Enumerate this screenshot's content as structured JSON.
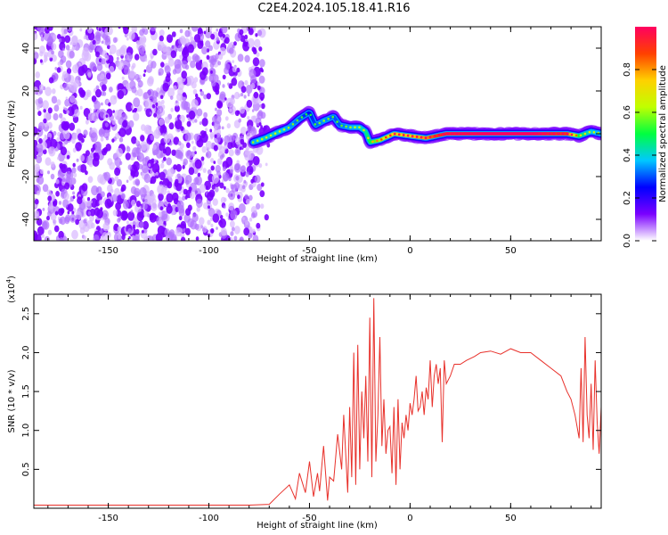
{
  "title": "C2E4.2024.105.18.41.R16",
  "chart_data": [
    {
      "type": "heatmap",
      "xlabel": "Height of straight line (km)",
      "ylabel": "Frequency (Hz)",
      "xlim": [
        -187,
        95
      ],
      "ylim": [
        -50,
        50
      ],
      "xticks": [
        -150,
        -100,
        -50,
        0,
        50
      ],
      "yticks": [
        -40,
        -20,
        0,
        20,
        40
      ],
      "noise_region_x": [
        -187,
        -73
      ],
      "ridge": [
        {
          "x": -78,
          "y": -4,
          "v": 0.35
        },
        {
          "x": -72,
          "y": -2,
          "v": 0.4
        },
        {
          "x": -65,
          "y": 1,
          "v": 0.4
        },
        {
          "x": -60,
          "y": 3,
          "v": 0.35
        },
        {
          "x": -55,
          "y": 7,
          "v": 0.3
        },
        {
          "x": -50,
          "y": 10,
          "v": 0.25
        },
        {
          "x": -47,
          "y": 4,
          "v": 0.3
        },
        {
          "x": -43,
          "y": 6,
          "v": 0.35
        },
        {
          "x": -38,
          "y": 8,
          "v": 0.3
        },
        {
          "x": -35,
          "y": 4,
          "v": 0.3
        },
        {
          "x": -30,
          "y": 3,
          "v": 0.35
        },
        {
          "x": -25,
          "y": 3,
          "v": 0.4
        },
        {
          "x": -22,
          "y": 1,
          "v": 0.45
        },
        {
          "x": -20,
          "y": -4,
          "v": 0.5
        },
        {
          "x": -15,
          "y": -3,
          "v": 0.6
        },
        {
          "x": -8,
          "y": 0,
          "v": 0.75
        },
        {
          "x": 0,
          "y": -1,
          "v": 0.75
        },
        {
          "x": 8,
          "y": -2,
          "v": 0.8
        },
        {
          "x": 18,
          "y": 0,
          "v": 0.95
        },
        {
          "x": 40,
          "y": 0,
          "v": 1.0
        },
        {
          "x": 60,
          "y": 0,
          "v": 1.0
        },
        {
          "x": 78,
          "y": 0,
          "v": 0.9
        },
        {
          "x": 84,
          "y": -1,
          "v": 0.5
        },
        {
          "x": 90,
          "y": 1,
          "v": 0.4
        },
        {
          "x": 95,
          "y": 0,
          "v": 0.35
        }
      ],
      "colorbar": {
        "label": "Normalized spectral amplitude",
        "range": [
          0,
          1
        ],
        "ticks": [
          "0.0",
          "0.2",
          "0.4",
          "0.6",
          "0.8"
        ],
        "tick_values": [
          0,
          0.2,
          0.4,
          0.6,
          0.8
        ],
        "colors": [
          "#ffffff",
          "#7a00ff",
          "#0000ff",
          "#00c8ff",
          "#00ff40",
          "#c0ff00",
          "#ffd000",
          "#ff4000",
          "#ff0060"
        ]
      }
    },
    {
      "type": "line",
      "xlabel": "Height of straight line (km)",
      "ylabel": "SNR (10 * v/v)",
      "multiplier": "(x10",
      "multiplier_exp": "4",
      "multiplier_close": ")",
      "xlim": [
        -187,
        95
      ],
      "ylim": [
        0,
        2.75
      ],
      "xticks": [
        -150,
        -100,
        -50,
        0,
        50
      ],
      "yticks": [
        0.5,
        1.0,
        1.5,
        2.0,
        2.5
      ],
      "ytick_labels": [
        "0.5",
        "1.0",
        "1.5",
        "2.0",
        "2.5"
      ],
      "line_color": "#e8302a",
      "series": [
        {
          "x": [
            -187,
            -160,
            -130,
            -100,
            -80,
            -70,
            -65,
            -60,
            -57,
            -55,
            -52,
            -50,
            -48,
            -46,
            -45,
            -43,
            -41,
            -40,
            -38,
            -36,
            -34,
            -33,
            -31,
            -30,
            -29,
            -28,
            -27,
            -26,
            -25,
            -24,
            -23,
            -22,
            -21,
            -20,
            -19,
            -18,
            -17,
            -16,
            -15,
            -14,
            -13,
            -12,
            -11,
            -10,
            -9,
            -8,
            -7,
            -6,
            -5,
            -4,
            -3,
            -2,
            -1,
            0,
            1,
            2,
            3,
            4,
            5,
            6,
            7,
            8,
            9,
            10,
            11,
            12,
            13,
            14,
            15,
            16,
            17,
            18,
            20,
            22,
            25,
            28,
            32,
            35,
            40,
            45,
            50,
            55,
            60,
            65,
            70,
            75,
            78,
            80,
            82,
            84,
            85,
            86,
            87,
            88,
            89,
            90,
            91,
            92,
            93,
            94,
            95
          ],
          "y": [
            0.04,
            0.04,
            0.04,
            0.04,
            0.04,
            0.05,
            0.18,
            0.3,
            0.12,
            0.45,
            0.2,
            0.6,
            0.15,
            0.45,
            0.22,
            0.8,
            0.1,
            0.4,
            0.35,
            0.95,
            0.5,
            1.2,
            0.2,
            1.3,
            0.4,
            2.0,
            0.3,
            2.1,
            0.5,
            1.5,
            0.9,
            1.7,
            0.6,
            2.45,
            0.4,
            2.7,
            0.6,
            1.2,
            2.2,
            0.8,
            1.4,
            0.7,
            1.0,
            1.05,
            0.45,
            1.3,
            0.3,
            1.4,
            0.5,
            1.1,
            0.9,
            1.2,
            1.0,
            1.35,
            1.2,
            1.4,
            1.7,
            1.25,
            1.3,
            1.5,
            1.2,
            1.55,
            1.4,
            1.9,
            1.3,
            1.7,
            1.85,
            1.6,
            1.8,
            0.85,
            1.9,
            1.6,
            1.7,
            1.85,
            1.85,
            1.9,
            1.95,
            2.0,
            2.02,
            1.98,
            2.05,
            2.0,
            2.0,
            1.9,
            1.8,
            1.7,
            1.5,
            1.4,
            1.2,
            0.9,
            1.8,
            0.85,
            2.2,
            1.2,
            0.9,
            1.6,
            0.75,
            1.9,
            1.1,
            0.7,
            1.3
          ]
        }
      ]
    }
  ]
}
